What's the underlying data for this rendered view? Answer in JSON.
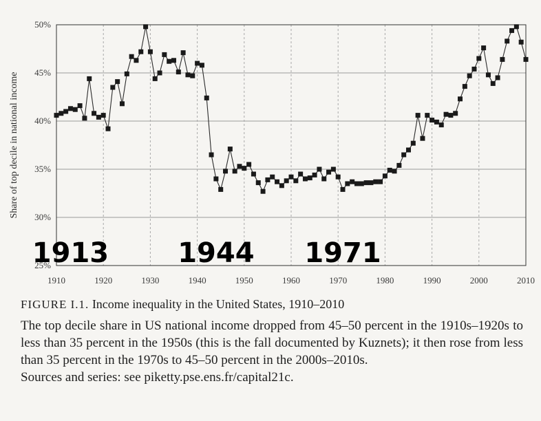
{
  "chart_data": {
    "type": "line",
    "ylabel": "Share of top decile in national income",
    "x_ticks": [
      "1910",
      "1920",
      "1930",
      "1940",
      "1950",
      "1960",
      "1970",
      "1980",
      "1990",
      "2000",
      "2010"
    ],
    "y_ticks": [
      "25%",
      "30%",
      "35%",
      "40%",
      "45%",
      "50%"
    ],
    "xlim": [
      1910,
      2010
    ],
    "ylim": [
      25,
      50
    ],
    "grid": true,
    "marker": "square",
    "annotations": [
      "1913",
      "1944",
      "1971"
    ],
    "series": [
      {
        "x": [
          1910,
          1911,
          1912,
          1913,
          1914,
          1915,
          1916,
          1917,
          1918,
          1919,
          1920,
          1921,
          1922,
          1923,
          1924,
          1925,
          1926,
          1927,
          1928,
          1929,
          1930,
          1931,
          1932,
          1933,
          1934,
          1935,
          1936,
          1937,
          1938,
          1939,
          1940,
          1941,
          1942,
          1943,
          1944,
          1945,
          1946,
          1947,
          1948,
          1949,
          1950,
          1951,
          1952,
          1953,
          1954,
          1955,
          1956,
          1957,
          1958,
          1959,
          1960,
          1961,
          1962,
          1963,
          1964,
          1965,
          1966,
          1967,
          1968,
          1969,
          1970,
          1971,
          1972,
          1973,
          1974,
          1975,
          1976,
          1977,
          1978,
          1979,
          1980,
          1981,
          1982,
          1983,
          1984,
          1985,
          1986,
          1987,
          1988,
          1989,
          1990,
          1991,
          1992,
          1993,
          1994,
          1995,
          1996,
          1997,
          1998,
          1999,
          2000,
          2001,
          2002,
          2003,
          2004,
          2005,
          2006,
          2007,
          2008,
          2009,
          2010
        ],
        "y": [
          40.6,
          40.8,
          41.0,
          41.3,
          41.2,
          41.6,
          40.3,
          44.4,
          40.8,
          40.4,
          40.6,
          39.2,
          43.5,
          44.1,
          41.8,
          44.9,
          46.7,
          46.3,
          47.2,
          49.8,
          47.2,
          44.4,
          45.0,
          46.9,
          46.2,
          46.3,
          45.1,
          47.1,
          44.8,
          44.7,
          46.0,
          45.8,
          42.4,
          36.5,
          34.0,
          32.9,
          34.8,
          37.1,
          34.8,
          35.3,
          35.1,
          35.5,
          34.5,
          33.6,
          32.7,
          33.9,
          34.2,
          33.7,
          33.3,
          33.8,
          34.2,
          33.8,
          34.5,
          34.0,
          34.1,
          34.4,
          35.0,
          34.0,
          34.7,
          35.0,
          34.2,
          32.9,
          33.5,
          33.7,
          33.5,
          33.5,
          33.6,
          33.6,
          33.7,
          33.7,
          34.3,
          34.9,
          34.8,
          35.4,
          36.5,
          37.0,
          37.7,
          40.6,
          38.2,
          40.6,
          40.1,
          39.9,
          39.6,
          40.7,
          40.6,
          40.8,
          42.3,
          43.6,
          44.7,
          45.4,
          46.5,
          47.6,
          44.8,
          43.9,
          44.5,
          46.4,
          48.3,
          49.4,
          49.8,
          48.2,
          46.4
        ]
      }
    ]
  },
  "caption": {
    "label": "FIGURE I.1.",
    "title": "Income inequality in the United States, 1910–2010",
    "text": "The top decile share in US national income dropped from 45–50 percent in the 1910s–1920s to less than 35 percent in the 1950s (this is the fall documented by Kuznets); it then rose from less than 35 percent in the 1970s to 45–50 percent in the 2000s–2010s.",
    "source": "Sources and series: see piketty.pse.ens.fr/capital21c."
  }
}
